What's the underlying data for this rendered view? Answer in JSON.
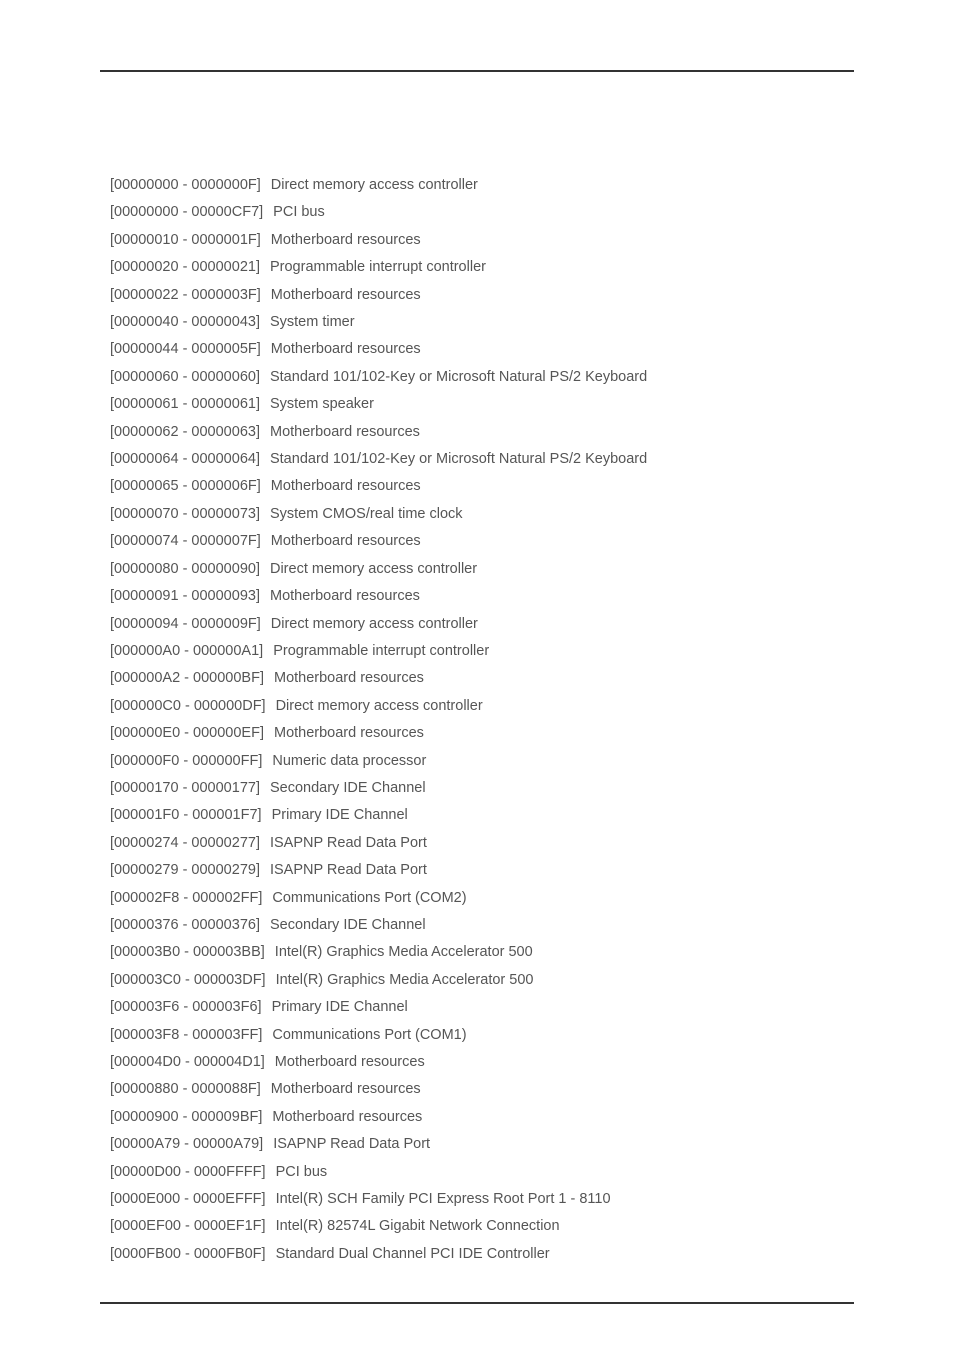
{
  "text_color": "#555555",
  "background_color": "#ffffff",
  "font_family": "Tahoma",
  "font_size_pt": 11,
  "rows": [
    {
      "range": "[00000000 - 0000000F]",
      "desc": "Direct memory access controller"
    },
    {
      "range": "[00000000 - 00000CF7]",
      "desc": "PCI bus"
    },
    {
      "range": "[00000010 - 0000001F]",
      "desc": "Motherboard resources"
    },
    {
      "range": "[00000020 - 00000021]",
      "desc": "Programmable interrupt controller"
    },
    {
      "range": "[00000022 - 0000003F]",
      "desc": "Motherboard resources"
    },
    {
      "range": "[00000040 - 00000043]",
      "desc": "System timer"
    },
    {
      "range": "[00000044 - 0000005F]",
      "desc": "Motherboard resources"
    },
    {
      "range": "[00000060 - 00000060]",
      "desc": "Standard 101/102-Key or Microsoft Natural PS/2 Keyboard"
    },
    {
      "range": "[00000061 - 00000061]",
      "desc": "System speaker"
    },
    {
      "range": "[00000062 - 00000063]",
      "desc": "Motherboard resources"
    },
    {
      "range": "[00000064 - 00000064]",
      "desc": "Standard 101/102-Key or Microsoft Natural PS/2 Keyboard"
    },
    {
      "range": "[00000065 - 0000006F]",
      "desc": "Motherboard resources"
    },
    {
      "range": "[00000070 - 00000073]",
      "desc": "System CMOS/real time clock"
    },
    {
      "range": "[00000074 - 0000007F]",
      "desc": "Motherboard resources"
    },
    {
      "range": "[00000080 - 00000090]",
      "desc": "Direct memory access controller"
    },
    {
      "range": "[00000091 - 00000093]",
      "desc": "Motherboard resources"
    },
    {
      "range": "[00000094 - 0000009F]",
      "desc": "Direct memory access controller"
    },
    {
      "range": "[000000A0 - 000000A1]",
      "desc": "Programmable interrupt controller"
    },
    {
      "range": "[000000A2 - 000000BF]",
      "desc": "Motherboard resources"
    },
    {
      "range": "[000000C0 - 000000DF]",
      "desc": "Direct memory access controller"
    },
    {
      "range": "[000000E0 - 000000EF]",
      "desc": "Motherboard resources"
    },
    {
      "range": "[000000F0 - 000000FF]",
      "desc": "Numeric data processor"
    },
    {
      "range": "[00000170 - 00000177]",
      "desc": "Secondary IDE Channel"
    },
    {
      "range": "[000001F0 - 000001F7]",
      "desc": "Primary IDE Channel"
    },
    {
      "range": "[00000274 - 00000277]",
      "desc": "ISAPNP Read Data Port"
    },
    {
      "range": "[00000279 - 00000279]",
      "desc": "ISAPNP Read Data Port"
    },
    {
      "range": "[000002F8 - 000002FF]",
      "desc": "Communications Port (COM2)"
    },
    {
      "range": "[00000376 - 00000376]",
      "desc": "Secondary IDE Channel"
    },
    {
      "range": "[000003B0 - 000003BB]",
      "desc": "Intel(R) Graphics Media Accelerator 500"
    },
    {
      "range": "[000003C0 - 000003DF]",
      "desc": "Intel(R) Graphics Media Accelerator 500"
    },
    {
      "range": "[000003F6 - 000003F6]",
      "desc": "Primary IDE Channel"
    },
    {
      "range": "[000003F8 - 000003FF]",
      "desc": "Communications Port (COM1)"
    },
    {
      "range": "[000004D0 - 000004D1]",
      "desc": "Motherboard resources"
    },
    {
      "range": "[00000880 - 0000088F]",
      "desc": "Motherboard resources"
    },
    {
      "range": "[00000900 - 000009BF]",
      "desc": "Motherboard resources"
    },
    {
      "range": "[00000A79 - 00000A79]",
      "desc": "ISAPNP Read Data Port"
    },
    {
      "range": "[00000D00 - 0000FFFF]",
      "desc": "PCI bus"
    },
    {
      "range": "[0000E000 - 0000EFFF]",
      "desc": "Intel(R) SCH Family PCI Express Root Port 1 - 8110"
    },
    {
      "range": "[0000EF00 - 0000EF1F]",
      "desc": "Intel(R) 82574L Gigabit Network Connection"
    },
    {
      "range": "[0000FB00 - 0000FB0F]",
      "desc": "Standard Dual Channel PCI IDE Controller"
    }
  ]
}
